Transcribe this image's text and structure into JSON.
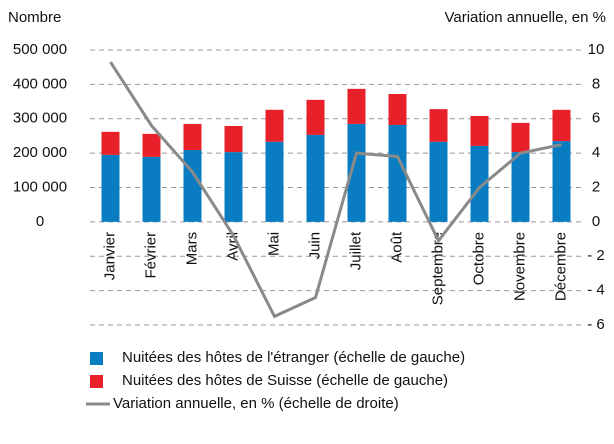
{
  "chart_data": {
    "type": "bar",
    "y_label": "Nombre",
    "y2_label": "Variation annuelle, en %",
    "categories": [
      "Janvier",
      "Février",
      "Mars",
      "Avril",
      "Mai",
      "Juin",
      "Juillet",
      "Août",
      "Septembre",
      "Octobre",
      "Novembre",
      "Décembre"
    ],
    "series": [
      {
        "name": "Nuitées des hôtes de l'étranger (échelle de gauche)",
        "color": "#0a7dc2",
        "type": "bar",
        "values": [
          195000,
          189000,
          209000,
          203000,
          233000,
          253000,
          285000,
          282000,
          233000,
          221000,
          203000,
          235000
        ]
      },
      {
        "name": "Nuitées des hôtes de Suisse (échelle de gauche)",
        "color": "#e8202a",
        "type": "bar",
        "values": [
          67000,
          67000,
          76000,
          76000,
          93000,
          102000,
          102000,
          90000,
          95000,
          87000,
          85000,
          91000
        ]
      },
      {
        "name": "Variation annuelle, en % (échelle de droite)",
        "color": "#8a8a8a",
        "type": "line",
        "axis": "y2",
        "values": [
          9.3,
          5.6,
          2.9,
          -0.8,
          -5.5,
          -4.4,
          4.0,
          3.8,
          -1.1,
          2.0,
          4.0,
          4.5
        ]
      }
    ],
    "stacked": true,
    "ylim": [
      -300000,
      500000
    ],
    "yticks": [
      0,
      {
        "value": 100000,
        "label": "100 000"
      },
      {
        "value": 200000,
        "label": "200 000"
      },
      {
        "value": 300000,
        "label": "300 000"
      },
      {
        "value": 400000,
        "label": "400 000"
      },
      {
        "value": 500000,
        "label": "500 000"
      }
    ],
    "y2lim": [
      -6,
      10
    ],
    "y2ticks": [
      {
        "value": -6,
        "label": "- 6"
      },
      {
        "value": -4,
        "label": "- 4"
      },
      {
        "value": -2,
        "label": "- 2"
      },
      0,
      2,
      4,
      6,
      8,
      10
    ],
    "grid": true
  }
}
